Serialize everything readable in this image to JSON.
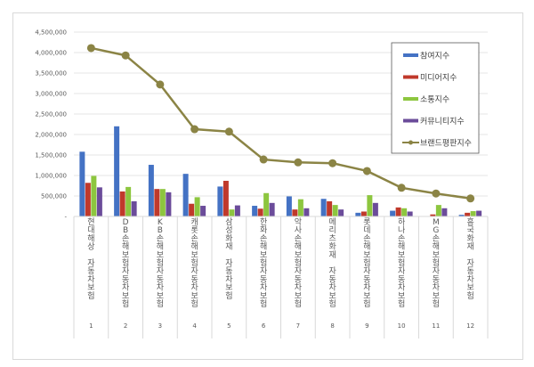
{
  "chart_data": {
    "type": "bar",
    "title": "",
    "xlabel": "",
    "ylabel": "",
    "ylim": [
      0,
      4500000
    ],
    "yticks": [
      "-",
      "500,000",
      "1,000,000",
      "1,500,000",
      "2,000,000",
      "2,500,000",
      "3,000,000",
      "3,500,000",
      "4,000,000",
      "4,500,000"
    ],
    "grid": true,
    "legend_position": "top-right",
    "categories": [
      "현대해상 자동차보험",
      "DB손해보험자동차보험",
      "KB손해보험자동차보험",
      "캐롯손해보험자동차보험",
      "삼성화재 자동차보험",
      "한화손해보험자동차보험",
      "악사손해보험자동차보험",
      "메리츠화재 자동차보험",
      "롯데손해보험자동차보험",
      "하나손해보험자동차보험",
      "MG손해보험자동차보험",
      "흥국화재 자동차보험"
    ],
    "ranks": [
      "1",
      "2",
      "3",
      "4",
      "5",
      "6",
      "7",
      "8",
      "9",
      "10",
      "11",
      "12"
    ],
    "series": [
      {
        "name": "참여지수",
        "kind": "bar",
        "color": "#4472c4",
        "values": [
          1580000,
          2200000,
          1260000,
          1040000,
          730000,
          260000,
          490000,
          430000,
          90000,
          140000,
          10000,
          40000
        ]
      },
      {
        "name": "미디어지수",
        "kind": "bar",
        "color": "#c0392b",
        "values": [
          820000,
          610000,
          670000,
          310000,
          870000,
          190000,
          170000,
          370000,
          120000,
          220000,
          50000,
          90000
        ]
      },
      {
        "name": "소통지수",
        "kind": "bar",
        "color": "#8dc63f",
        "values": [
          990000,
          720000,
          670000,
          470000,
          170000,
          570000,
          420000,
          280000,
          520000,
          200000,
          280000,
          130000
        ]
      },
      {
        "name": "커뮤니티지수",
        "kind": "bar",
        "color": "#6b4c9a",
        "values": [
          710000,
          370000,
          590000,
          260000,
          270000,
          330000,
          200000,
          170000,
          330000,
          120000,
          200000,
          140000
        ]
      },
      {
        "name": "브랜드평판지수",
        "kind": "line",
        "color": "#8b8445",
        "values": [
          4110000,
          3930000,
          3220000,
          2130000,
          2070000,
          1390000,
          1320000,
          1300000,
          1110000,
          700000,
          560000,
          440000
        ]
      }
    ]
  }
}
